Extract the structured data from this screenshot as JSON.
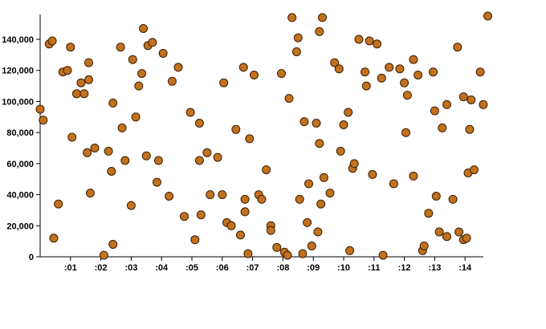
{
  "chart_data": {
    "type": "scatter",
    "title": "",
    "xlabel": "",
    "ylabel": "",
    "xlim": [
      0,
      14.6
    ],
    "ylim": [
      0,
      155000
    ],
    "grid": false,
    "marker_color": "#c2711d",
    "marker_edge_color": "#3a1e05",
    "x_ticks": [
      {
        "value": 1,
        "label": ":01"
      },
      {
        "value": 2,
        "label": ":02"
      },
      {
        "value": 3,
        "label": ":03"
      },
      {
        "value": 4,
        "label": ":04"
      },
      {
        "value": 5,
        "label": ":05"
      },
      {
        "value": 6,
        "label": ":06"
      },
      {
        "value": 7,
        "label": ":07"
      },
      {
        "value": 8,
        "label": ":08"
      },
      {
        "value": 9,
        "label": ":09"
      },
      {
        "value": 10,
        "label": ":10"
      },
      {
        "value": 11,
        "label": ":11"
      },
      {
        "value": 12,
        "label": ":12"
      },
      {
        "value": 13,
        "label": ":13"
      },
      {
        "value": 14,
        "label": ":14"
      }
    ],
    "y_ticks": [
      {
        "value": 0,
        "label": "0"
      },
      {
        "value": 20000,
        "label": "20,000"
      },
      {
        "value": 40000,
        "label": "40,000"
      },
      {
        "value": 60000,
        "label": "60,000"
      },
      {
        "value": 80000,
        "label": "80,000"
      },
      {
        "value": 100000,
        "label": "100,000"
      },
      {
        "value": 120000,
        "label": "120,000"
      },
      {
        "value": 140000,
        "label": "140,000"
      }
    ],
    "points": [
      [
        0.0,
        95000
      ],
      [
        0.1,
        88000
      ],
      [
        0.3,
        137000
      ],
      [
        0.4,
        139000
      ],
      [
        0.45,
        12000
      ],
      [
        0.6,
        34000
      ],
      [
        0.75,
        119000
      ],
      [
        0.9,
        120000
      ],
      [
        1.0,
        135000
      ],
      [
        1.05,
        77000
      ],
      [
        1.2,
        105000
      ],
      [
        1.35,
        112000
      ],
      [
        1.45,
        105000
      ],
      [
        1.55,
        67000
      ],
      [
        1.6,
        125000
      ],
      [
        1.6,
        114000
      ],
      [
        1.65,
        41000
      ],
      [
        1.8,
        70000
      ],
      [
        2.1,
        1000
      ],
      [
        2.25,
        68000
      ],
      [
        2.35,
        55000
      ],
      [
        2.4,
        99000
      ],
      [
        2.4,
        8000
      ],
      [
        2.65,
        135000
      ],
      [
        2.7,
        83000
      ],
      [
        2.8,
        62000
      ],
      [
        3.0,
        33000
      ],
      [
        3.05,
        127000
      ],
      [
        3.15,
        90000
      ],
      [
        3.25,
        110000
      ],
      [
        3.35,
        118000
      ],
      [
        3.4,
        147000
      ],
      [
        3.5,
        65000
      ],
      [
        3.55,
        136000
      ],
      [
        3.7,
        138000
      ],
      [
        3.85,
        48000
      ],
      [
        3.9,
        62000
      ],
      [
        4.05,
        131000
      ],
      [
        4.25,
        39000
      ],
      [
        4.35,
        113000
      ],
      [
        4.55,
        122000
      ],
      [
        4.75,
        26000
      ],
      [
        4.95,
        93000
      ],
      [
        5.1,
        11000
      ],
      [
        5.25,
        86000
      ],
      [
        5.25,
        62000
      ],
      [
        5.3,
        27000
      ],
      [
        5.5,
        67000
      ],
      [
        5.6,
        40000
      ],
      [
        5.85,
        64000
      ],
      [
        6.0,
        40000
      ],
      [
        6.05,
        112000
      ],
      [
        6.15,
        22000
      ],
      [
        6.3,
        20000
      ],
      [
        6.45,
        82000
      ],
      [
        6.6,
        14000
      ],
      [
        6.7,
        122000
      ],
      [
        6.75,
        29000
      ],
      [
        6.75,
        37000
      ],
      [
        6.85,
        2000
      ],
      [
        6.9,
        76000
      ],
      [
        7.05,
        117000
      ],
      [
        7.2,
        40000
      ],
      [
        7.3,
        37000
      ],
      [
        7.45,
        56000
      ],
      [
        7.6,
        20000
      ],
      [
        7.6,
        17000
      ],
      [
        7.8,
        6000
      ],
      [
        7.95,
        118000
      ],
      [
        8.05,
        3000
      ],
      [
        8.15,
        1000
      ],
      [
        8.2,
        102000
      ],
      [
        8.3,
        154000
      ],
      [
        8.45,
        132000
      ],
      [
        8.5,
        141000
      ],
      [
        8.55,
        37000
      ],
      [
        8.65,
        2000
      ],
      [
        8.7,
        87000
      ],
      [
        8.8,
        22000
      ],
      [
        8.85,
        47000
      ],
      [
        8.95,
        7000
      ],
      [
        9.1,
        86000
      ],
      [
        9.15,
        16000
      ],
      [
        9.2,
        145000
      ],
      [
        9.2,
        73000
      ],
      [
        9.25,
        34000
      ],
      [
        9.3,
        154000
      ],
      [
        9.35,
        51000
      ],
      [
        9.55,
        41000
      ],
      [
        9.7,
        125000
      ],
      [
        9.85,
        121000
      ],
      [
        9.9,
        68000
      ],
      [
        10.0,
        85000
      ],
      [
        10.15,
        93000
      ],
      [
        10.2,
        4000
      ],
      [
        10.3,
        57000
      ],
      [
        10.35,
        60000
      ],
      [
        10.5,
        140000
      ],
      [
        10.7,
        119000
      ],
      [
        10.75,
        110000
      ],
      [
        10.85,
        139000
      ],
      [
        10.95,
        53000
      ],
      [
        11.1,
        137000
      ],
      [
        11.25,
        115000
      ],
      [
        11.3,
        1000
      ],
      [
        11.5,
        122000
      ],
      [
        11.65,
        47000
      ],
      [
        11.85,
        121000
      ],
      [
        12.0,
        112000
      ],
      [
        12.05,
        80000
      ],
      [
        12.1,
        104000
      ],
      [
        12.3,
        127000
      ],
      [
        12.3,
        52000
      ],
      [
        12.45,
        117000
      ],
      [
        12.6,
        4000
      ],
      [
        12.65,
        7000
      ],
      [
        12.8,
        28000
      ],
      [
        12.95,
        119000
      ],
      [
        13.0,
        94000
      ],
      [
        13.05,
        39000
      ],
      [
        13.15,
        16000
      ],
      [
        13.25,
        83000
      ],
      [
        13.4,
        98000
      ],
      [
        13.4,
        13000
      ],
      [
        13.6,
        37000
      ],
      [
        13.75,
        135000
      ],
      [
        13.8,
        16000
      ],
      [
        13.95,
        103000
      ],
      [
        13.95,
        11000
      ],
      [
        14.05,
        12000
      ],
      [
        14.1,
        54000
      ],
      [
        14.15,
        82000
      ],
      [
        14.2,
        101000
      ],
      [
        14.3,
        56000
      ],
      [
        14.5,
        119000
      ],
      [
        14.6,
        98000
      ],
      [
        14.75,
        155000
      ]
    ]
  }
}
